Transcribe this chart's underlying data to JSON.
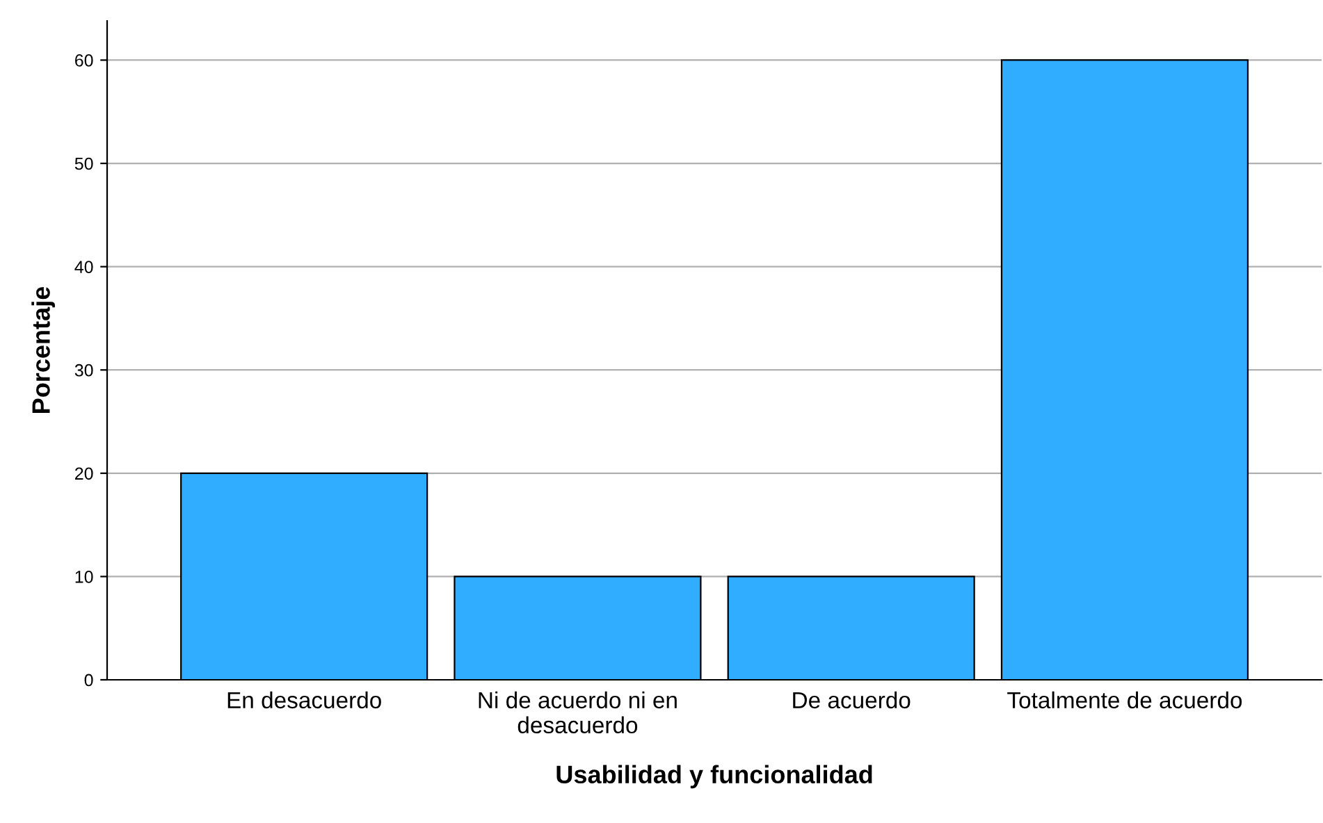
{
  "chart_data": {
    "type": "bar",
    "xlabel": "Usabilidad y funcionalidad",
    "ylabel": "Porcentaje",
    "categories": [
      "En desacuerdo",
      "Ni de acuerdo ni en\ndesacuerdo",
      "De acuerdo",
      "Totalmente de acuerdo"
    ],
    "values": [
      20,
      10,
      10,
      60
    ],
    "color": "#31adff",
    "ylim": [
      0,
      63.8
    ],
    "yticks": [
      0,
      10,
      20,
      30,
      40,
      50,
      60
    ],
    "grid": "y",
    "legend": false
  }
}
